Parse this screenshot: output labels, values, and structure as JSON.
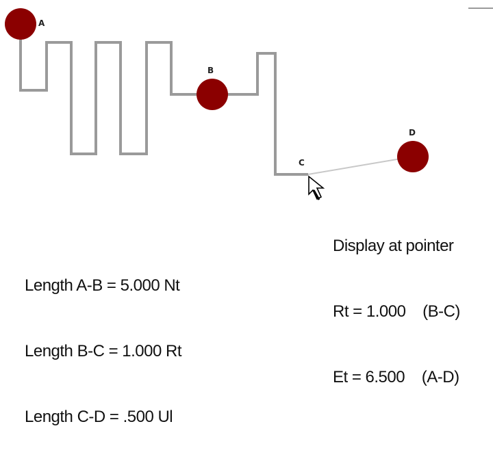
{
  "points": [
    {
      "id": "A",
      "label": "A"
    },
    {
      "id": "B",
      "label": "B"
    },
    {
      "id": "C",
      "label": "C"
    },
    {
      "id": "D",
      "label": "D"
    }
  ],
  "pointer_readout": {
    "title": "Display at pointer",
    "rt": "Rt = 1.000    (B-C)",
    "et": "Et = 6.500    (A-D)"
  },
  "lengths": [
    "Length A-B = 5.000 Nt",
    "Length B-C = 1.000 Rt",
    "Length C-D = .500 Ul"
  ],
  "colors": {
    "node_fill": "#8b0000",
    "wire": "#9a9a9a",
    "pointer_line": "#c8c8c8"
  }
}
